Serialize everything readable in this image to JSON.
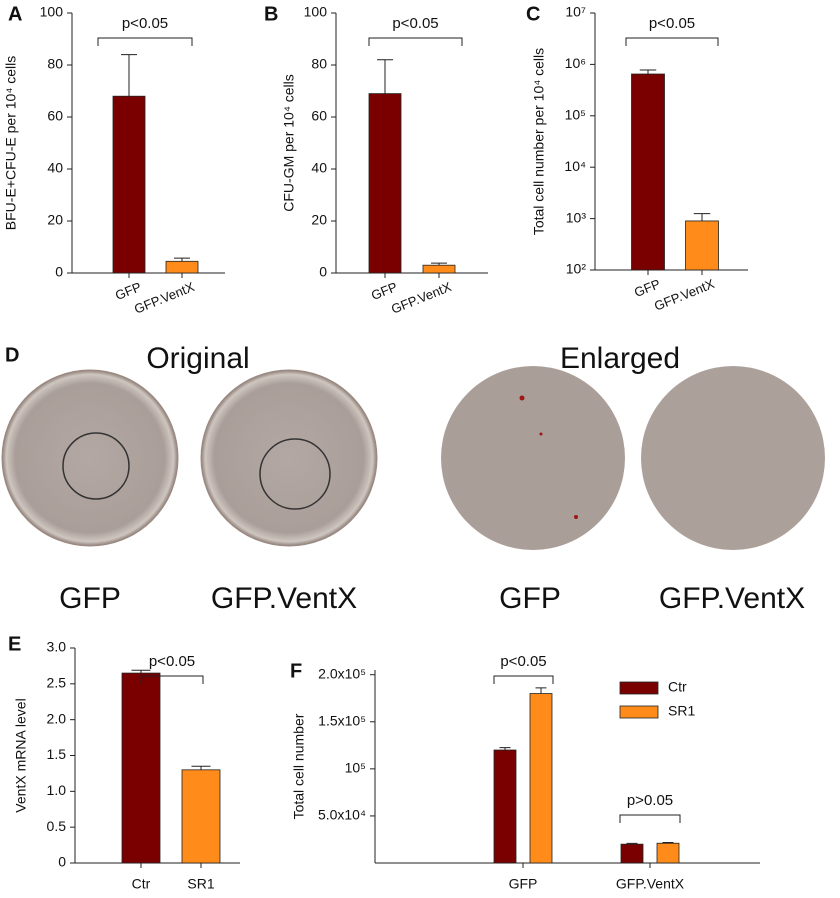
{
  "chart_data": [
    {
      "type": "bar",
      "panel": "A",
      "ylabel": "BFU-E+CFU-E per 10⁴ cells",
      "categories": [
        "GFP",
        "GFP.VentX"
      ],
      "values": [
        68,
        4.5
      ],
      "errors": [
        16,
        1.2
      ],
      "colors": [
        "#7a0000",
        "#ff8c1a"
      ],
      "ylim": [
        0,
        100
      ],
      "yticks": [
        0,
        20,
        40,
        60,
        80,
        100
      ],
      "annotations": [
        "p<0.05"
      ]
    },
    {
      "type": "bar",
      "panel": "B",
      "ylabel": "CFU-GM per 10⁴ cells",
      "categories": [
        "GFP",
        "GFP.VentX"
      ],
      "values": [
        69,
        3
      ],
      "errors": [
        13,
        0.8
      ],
      "colors": [
        "#7a0000",
        "#ff8c1a"
      ],
      "ylim": [
        0,
        100
      ],
      "yticks": [
        0,
        20,
        40,
        60,
        80,
        100
      ],
      "annotations": [
        "p<0.05"
      ]
    },
    {
      "type": "bar",
      "panel": "C",
      "ylabel": "Total cell number per 10⁴ cells",
      "categories": [
        "GFP",
        "GFP.VentX"
      ],
      "values": [
        650000,
        900
      ],
      "errors": [
        130000,
        350
      ],
      "colors": [
        "#7a0000",
        "#ff8c1a"
      ],
      "log_scale": true,
      "ylim": [
        100,
        10000000
      ],
      "yticks": [
        {
          "value": 100,
          "label": "10²"
        },
        {
          "value": 1000,
          "label": "10³"
        },
        {
          "value": 10000,
          "label": "10⁴"
        },
        {
          "value": 100000,
          "label": "10⁵"
        },
        {
          "value": 1000000,
          "label": "10⁶"
        },
        {
          "value": 10000000,
          "label": "10⁷"
        }
      ],
      "annotations": [
        "p<0.05"
      ]
    },
    {
      "type": "bar",
      "panel": "E",
      "ylabel": "VentX mRNA level",
      "categories": [
        "Ctr",
        "SR1"
      ],
      "values": [
        2.65,
        1.3
      ],
      "errors": [
        0.04,
        0.05
      ],
      "colors": [
        "#7a0000",
        "#ff8c1a"
      ],
      "ylim": [
        0,
        3
      ],
      "yticks": [
        0,
        0.5,
        {
          "value": 1,
          "label": "1.0"
        },
        1.5,
        {
          "value": 2,
          "label": "2.0"
        },
        2.5,
        {
          "value": 3,
          "label": "3.0"
        }
      ],
      "annotations": [
        "p<0.05"
      ]
    },
    {
      "type": "grouped_bar",
      "panel": "F",
      "ylabel": "Total cell number",
      "categories": [
        "GFP",
        "GFP.VentX"
      ],
      "series": [
        {
          "name": "Ctr",
          "color": "#7a0000",
          "values": [
            120000,
            20000
          ],
          "errors": [
            2500,
            800
          ]
        },
        {
          "name": "SR1",
          "color": "#ff8c1a",
          "values": [
            180000,
            21000
          ],
          "errors": [
            6000,
            800
          ]
        }
      ],
      "ylim": [
        0,
        205000
      ],
      "yticks": [
        {
          "value": 50000,
          "label": "5.0x10⁴"
        },
        {
          "value": 100000,
          "label": "10⁵"
        },
        {
          "value": 150000,
          "label": "1.5x10⁵"
        },
        {
          "value": 200000,
          "label": "2.0x10⁵"
        }
      ],
      "legend": "upper right",
      "annotations": [
        "p<0.05",
        "p>0.05"
      ]
    }
  ],
  "panel_d": {
    "panel": "D",
    "headings": [
      "Original",
      "Enlarged"
    ],
    "labels": [
      "GFP",
      "GFP.VentX",
      "GFP",
      "GFP.VentX"
    ]
  }
}
